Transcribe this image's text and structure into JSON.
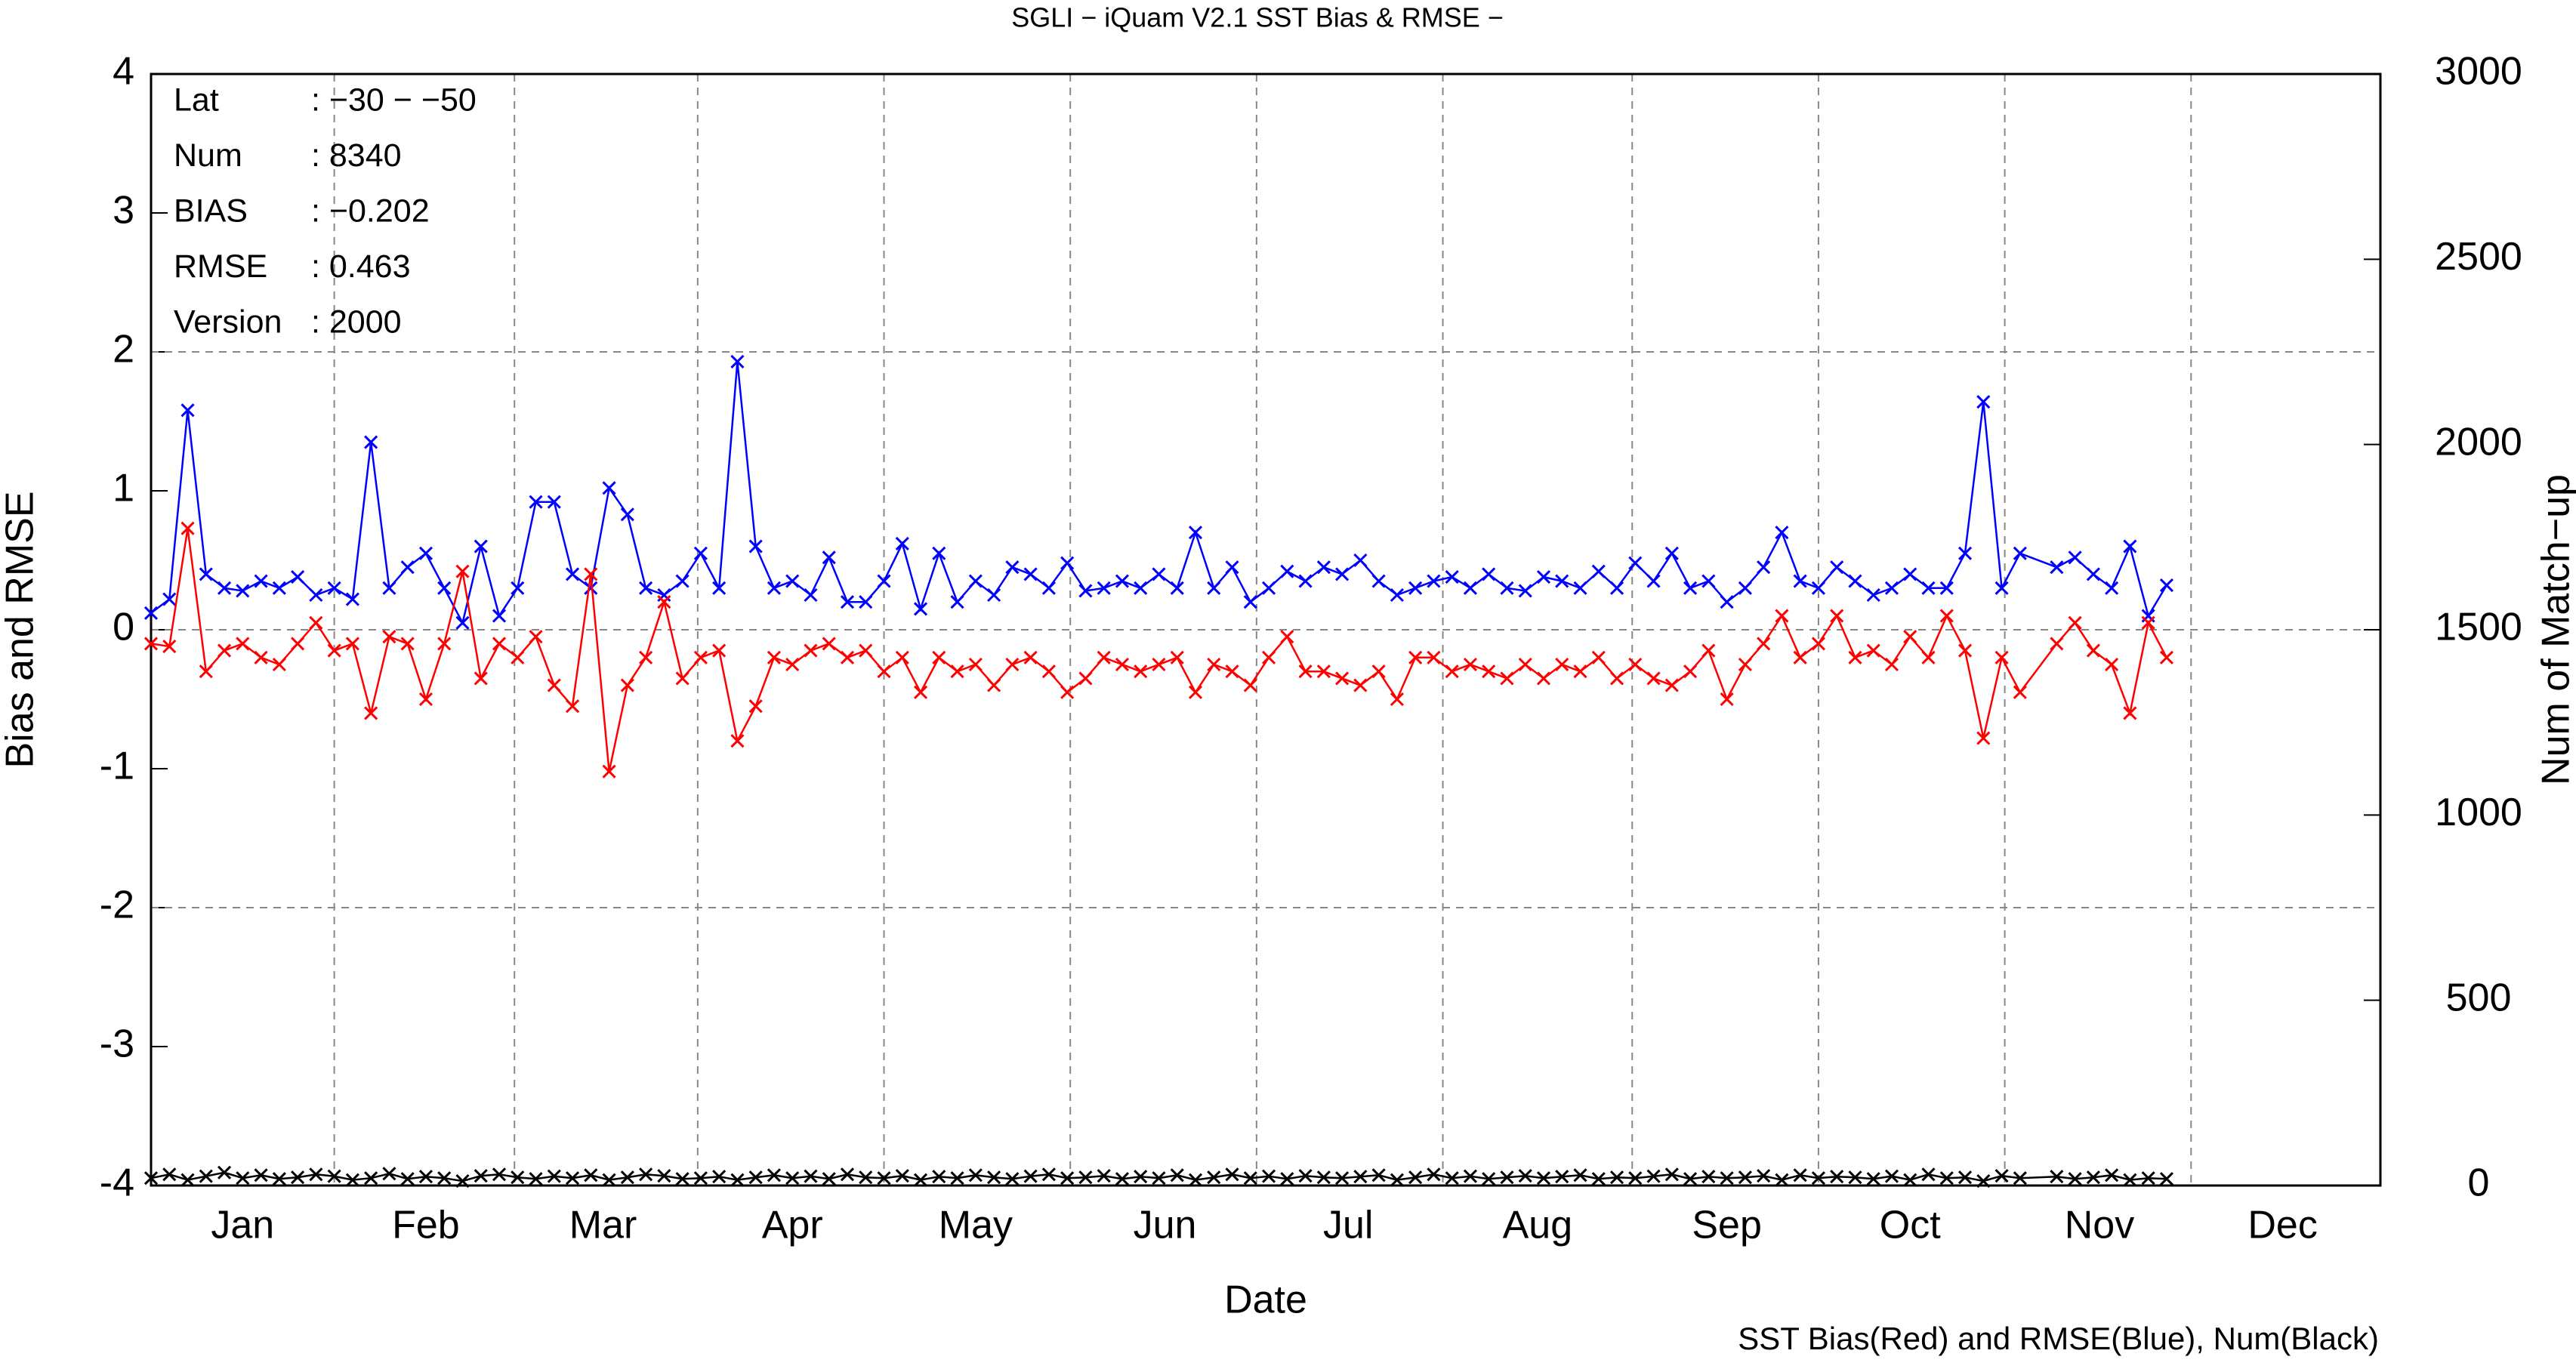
{
  "chart_data": {
    "type": "line",
    "title": "SGLI − iQuam V2.1 SST Bias & RMSE  −",
    "xlabel": "Date",
    "ylabel": "Bias and RMSE",
    "y2label": "Num of Match−up",
    "footer": "SST Bias(Red) and RMSE(Blue), Num(Black)",
    "info": [
      [
        "Lat",
        ": −30 − −50"
      ],
      [
        "Num",
        ": 8340"
      ],
      [
        "BIAS",
        ": −0.202"
      ],
      [
        "RMSE",
        ": 0.463"
      ],
      [
        "Version",
        ": 2000"
      ]
    ],
    "xlim": [
      1,
      366
    ],
    "xticks": [
      {
        "value": 16,
        "label": "Jan"
      },
      {
        "value": 46,
        "label": "Feb"
      },
      {
        "value": 75,
        "label": "Mar"
      },
      {
        "value": 106,
        "label": "Apr"
      },
      {
        "value": 136,
        "label": "May"
      },
      {
        "value": 167,
        "label": "Jun"
      },
      {
        "value": 197,
        "label": "Jul"
      },
      {
        "value": 228,
        "label": "Aug"
      },
      {
        "value": 259,
        "label": "Sep"
      },
      {
        "value": 289,
        "label": "Oct"
      },
      {
        "value": 320,
        "label": "Nov"
      },
      {
        "value": 350,
        "label": "Dec"
      }
    ],
    "ylim": [
      -4,
      4
    ],
    "yticks": [
      -4,
      -3,
      -2,
      -1,
      0,
      1,
      2,
      3,
      4
    ],
    "y2lim": [
      0,
      3000
    ],
    "y2ticks": [
      0,
      500,
      1000,
      1500,
      2000,
      2500,
      3000
    ],
    "grid": true,
    "x": [
      1,
      4,
      7,
      10,
      13,
      16,
      19,
      22,
      25,
      28,
      31,
      34,
      37,
      40,
      43,
      46,
      49,
      52,
      55,
      58,
      61,
      64,
      67,
      70,
      73,
      76,
      79,
      82,
      85,
      88,
      91,
      94,
      97,
      100,
      103,
      106,
      109,
      112,
      115,
      118,
      121,
      124,
      127,
      130,
      133,
      136,
      139,
      142,
      145,
      148,
      151,
      154,
      157,
      160,
      163,
      166,
      169,
      172,
      175,
      178,
      181,
      184,
      187,
      190,
      193,
      196,
      199,
      202,
      205,
      208,
      211,
      214,
      217,
      220,
      223,
      226,
      229,
      232,
      235,
      238,
      241,
      244,
      247,
      250,
      253,
      256,
      259,
      262,
      265,
      268,
      271,
      274,
      277,
      280,
      283,
      286,
      289,
      292,
      295,
      298,
      301,
      304,
      307,
      313,
      316,
      319,
      322,
      325,
      328,
      331
    ],
    "series": [
      {
        "name": "RMSE",
        "color": "#0000ff",
        "values": [
          0.12,
          0.22,
          1.58,
          0.4,
          0.3,
          0.28,
          0.35,
          0.3,
          0.38,
          0.25,
          0.3,
          0.22,
          1.35,
          0.3,
          0.45,
          0.55,
          0.3,
          0.05,
          0.6,
          0.1,
          0.3,
          0.92,
          0.92,
          0.4,
          0.3,
          1.02,
          0.83,
          0.3,
          0.25,
          0.35,
          0.55,
          0.3,
          1.93,
          0.6,
          0.3,
          0.35,
          0.25,
          0.52,
          0.2,
          0.2,
          0.35,
          0.62,
          0.15,
          0.55,
          0.2,
          0.35,
          0.25,
          0.45,
          0.4,
          0.3,
          0.48,
          0.28,
          0.3,
          0.35,
          0.3,
          0.4,
          0.3,
          0.7,
          0.3,
          0.45,
          0.2,
          0.3,
          0.42,
          0.35,
          0.45,
          0.4,
          0.5,
          0.35,
          0.25,
          0.3,
          0.35,
          0.38,
          0.3,
          0.4,
          0.3,
          0.28,
          0.38,
          0.35,
          0.3,
          0.42,
          0.3,
          0.48,
          0.35,
          0.55,
          0.3,
          0.35,
          0.2,
          0.3,
          0.45,
          0.7,
          0.35,
          0.3,
          0.45,
          0.35,
          0.25,
          0.3,
          0.4,
          0.3,
          0.3,
          0.55,
          1.64,
          0.3,
          0.55,
          0.45,
          0.52,
          0.4,
          0.3,
          0.6,
          0.1,
          0.32
        ]
      },
      {
        "name": "Bias",
        "color": "#ff0000",
        "values": [
          -0.1,
          -0.12,
          0.73,
          -0.3,
          -0.15,
          -0.1,
          -0.2,
          -0.25,
          -0.1,
          0.05,
          -0.15,
          -0.1,
          -0.6,
          -0.05,
          -0.1,
          -0.5,
          -0.1,
          0.42,
          -0.35,
          -0.1,
          -0.2,
          -0.05,
          -0.4,
          -0.55,
          0.4,
          -1.02,
          -0.4,
          -0.2,
          0.2,
          -0.35,
          -0.2,
          -0.15,
          -0.8,
          -0.55,
          -0.2,
          -0.25,
          -0.15,
          -0.1,
          -0.2,
          -0.15,
          -0.3,
          -0.2,
          -0.45,
          -0.2,
          -0.3,
          -0.25,
          -0.4,
          -0.25,
          -0.2,
          -0.3,
          -0.45,
          -0.35,
          -0.2,
          -0.25,
          -0.3,
          -0.25,
          -0.2,
          -0.45,
          -0.25,
          -0.3,
          -0.4,
          -0.2,
          -0.05,
          -0.3,
          -0.3,
          -0.35,
          -0.4,
          -0.3,
          -0.5,
          -0.2,
          -0.2,
          -0.3,
          -0.25,
          -0.3,
          -0.35,
          -0.25,
          -0.35,
          -0.25,
          -0.3,
          -0.2,
          -0.35,
          -0.25,
          -0.35,
          -0.4,
          -0.3,
          -0.15,
          -0.5,
          -0.25,
          -0.1,
          0.1,
          -0.2,
          -0.1,
          0.1,
          -0.2,
          -0.15,
          -0.25,
          -0.05,
          -0.2,
          0.1,
          -0.15,
          -0.78,
          -0.2,
          -0.45,
          -0.1,
          0.05,
          -0.15,
          -0.25,
          -0.6,
          0.05,
          -0.2
        ]
      },
      {
        "name": "Num",
        "color": "#000000",
        "axis": "y2",
        "values": [
          20,
          30,
          15,
          25,
          35,
          20,
          28,
          18,
          22,
          30,
          25,
          15,
          20,
          32,
          18,
          24,
          20,
          12,
          26,
          30,
          22,
          18,
          25,
          20,
          28,
          15,
          22,
          30,
          26,
          18,
          20,
          24,
          15,
          22,
          28,
          20,
          25,
          18,
          30,
          22,
          20,
          26,
          15,
          24,
          20,
          28,
          22,
          18,
          25,
          30,
          20,
          22,
          26,
          18,
          24,
          20,
          28,
          15,
          22,
          30,
          20,
          25,
          18,
          26,
          22,
          20,
          24,
          28,
          15,
          22,
          30,
          20,
          25,
          18,
          22,
          26,
          20,
          24,
          28,
          18,
          22,
          20,
          25,
          30,
          18,
          24,
          20,
          22,
          26,
          15,
          28,
          20,
          24,
          22,
          18,
          25,
          15,
          30,
          20,
          22,
          12,
          26,
          20,
          24,
          18,
          22,
          28,
          15,
          20,
          18
        ]
      }
    ]
  }
}
